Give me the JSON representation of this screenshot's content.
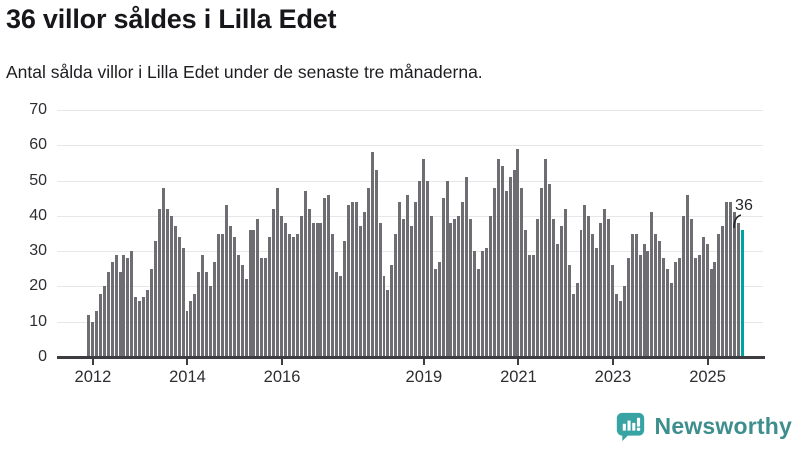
{
  "header": {
    "title": "36 villor såldes i Lilla Edet",
    "subtitle": "Antal sålda villor i Lilla Edet under de senaste tre månaderna."
  },
  "chart_data": {
    "type": "bar",
    "title": "36 villor såldes i Lilla Edet",
    "xlabel": "",
    "ylabel": "",
    "interval": "monthly",
    "start_month": "2011-12",
    "values": [
      12,
      10,
      13,
      18,
      20,
      24,
      27,
      29,
      24,
      29,
      28,
      30,
      17,
      16,
      17,
      19,
      25,
      33,
      42,
      48,
      42,
      40,
      37,
      34,
      31,
      13,
      16,
      18,
      24,
      29,
      24,
      20,
      27,
      35,
      35,
      43,
      37,
      34,
      29,
      26,
      22,
      36,
      36,
      39,
      28,
      28,
      34,
      42,
      48,
      40,
      38,
      35,
      34,
      35,
      40,
      47,
      42,
      38,
      38,
      38,
      45,
      46,
      35,
      24,
      23,
      33,
      43,
      44,
      44,
      37,
      41,
      48,
      58,
      53,
      38,
      23,
      19,
      26,
      35,
      44,
      39,
      46,
      37,
      44,
      50,
      56,
      50,
      40,
      25,
      27,
      45,
      50,
      38,
      39,
      40,
      44,
      51,
      39,
      30,
      25,
      30,
      31,
      40,
      48,
      56,
      54,
      47,
      51,
      53,
      59,
      48,
      36,
      29,
      29,
      39,
      48,
      56,
      49,
      39,
      32,
      37,
      42,
      26,
      18,
      21,
      36,
      43,
      40,
      35,
      31,
      38,
      42,
      39,
      26,
      18,
      16,
      20,
      28,
      35,
      35,
      29,
      32,
      30,
      41,
      35,
      33,
      28,
      25,
      21,
      27,
      28,
      40,
      46,
      39,
      28,
      29,
      34,
      32,
      25,
      27,
      35,
      37,
      44,
      44,
      41,
      38,
      36
    ],
    "last_value": 36,
    "annotation": {
      "text": "36",
      "applies_to": "last-bar"
    },
    "yticks": [
      0,
      10,
      20,
      30,
      40,
      50,
      60,
      70
    ],
    "ylim": [
      0,
      70
    ],
    "xticks": [
      {
        "label": "2012",
        "month_index": 1
      },
      {
        "label": "2014",
        "month_index": 25
      },
      {
        "label": "2016",
        "month_index": 49
      },
      {
        "label": "2019",
        "month_index": 85
      },
      {
        "label": "2021",
        "month_index": 109
      },
      {
        "label": "2023",
        "month_index": 133
      },
      {
        "label": "2025",
        "month_index": 157
      }
    ],
    "grid": true,
    "legend": false,
    "colors": {
      "bar": "#6e6d71",
      "highlight": "#00a3a3",
      "gridline": "#e7e7e9",
      "axis": "#3d3d41",
      "tick_label": "#2e2e32"
    }
  },
  "footer": {
    "brand": "Newsworthy",
    "logo_icon": "bar-chart-speech-bubble-icon",
    "colors": {
      "icon": "#38a3a3",
      "text": "#3e8e8e"
    }
  }
}
